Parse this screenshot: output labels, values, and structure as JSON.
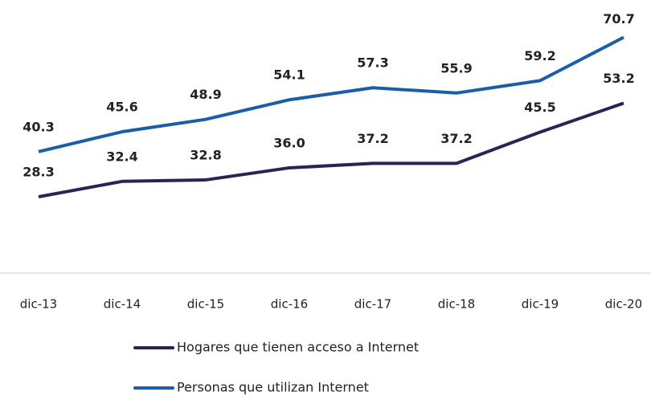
{
  "chart_data": {
    "type": "line",
    "categories": [
      "dic-13",
      "dic-14",
      "dic-15",
      "dic-16",
      "dic-17",
      "dic-18",
      "dic-19",
      "dic-20"
    ],
    "series": [
      {
        "name": "Hogares que tienen acceso a Internet",
        "color": "#2b2452",
        "values": [
          28.3,
          32.4,
          32.8,
          36.0,
          37.2,
          37.2,
          45.5,
          53.2
        ],
        "value_labels": [
          "28.3",
          "32.4",
          "32.8",
          "36.0",
          "37.2",
          "37.2",
          "45.5",
          "53.2"
        ]
      },
      {
        "name": "Personas que utilizan Internet",
        "color": "#1a5ea8",
        "values": [
          40.3,
          45.6,
          48.9,
          54.1,
          57.3,
          55.9,
          59.2,
          70.7
        ],
        "value_labels": [
          "40.3",
          "45.6",
          "48.9",
          "54.1",
          "57.3",
          "55.9",
          "59.2",
          "70.7"
        ]
      }
    ],
    "ylim": [
      8,
      80
    ],
    "legend": "bottom"
  }
}
